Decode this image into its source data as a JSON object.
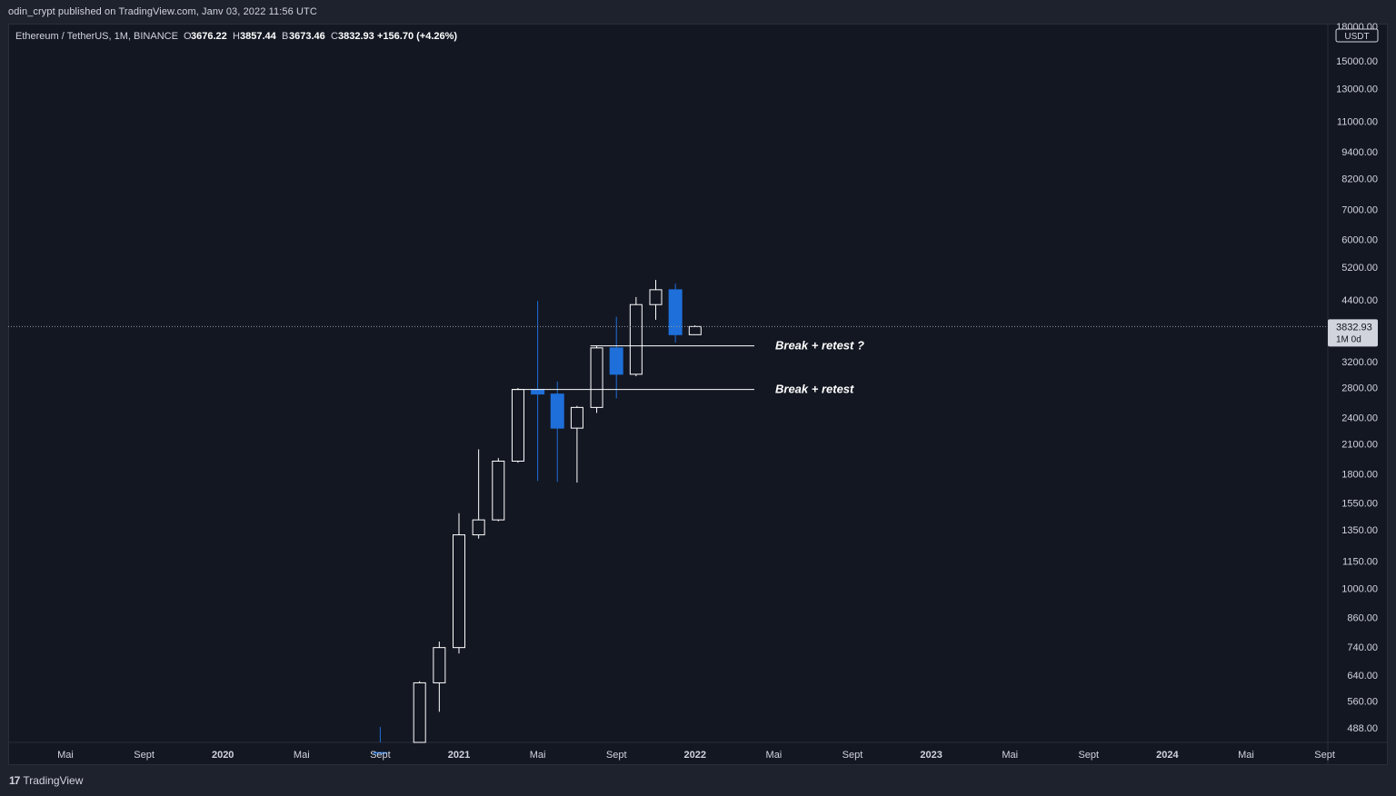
{
  "header": {
    "published_text": "odin_crypt published on TradingView.com, Janv 03, 2022 11:56 UTC"
  },
  "footer": {
    "logo_mark": "17",
    "logo_text": "TradingView"
  },
  "colors": {
    "background": "#131722",
    "frame": "#1e222d",
    "bull_candle": "#ffffff",
    "bear_candle": "#1e6fd9",
    "text": "#d1d4dc",
    "grid_axis": "#2a2e39"
  },
  "chart_data": {
    "type": "candlestick",
    "title_parts": {
      "symbol": "Ethereum / TetherUS, 1M, BINANCE",
      "o_label": "O",
      "o_value": "3676.22",
      "h_label": "H",
      "h_value": "3857.44",
      "b_label": "B",
      "b_value": "3673.46",
      "c_label": "C",
      "c_value": "3832.93",
      "change": "+156.70 (+4.26%)"
    },
    "y_scale": "log",
    "y_unit": "USDT",
    "y_ticks": [
      15000,
      13000,
      11000,
      9400,
      8200,
      7000,
      6000,
      5200,
      4400,
      3200,
      2800,
      2400,
      2100,
      1800,
      1550,
      1350,
      1150,
      1000,
      860,
      740,
      640,
      560,
      488
    ],
    "y_tick_labels": [
      "15000.00",
      "13000.00",
      "11000.00",
      "9400.00",
      "8200.00",
      "7000.00",
      "6000.00",
      "5200.00",
      "4400.00",
      "3200.00",
      "2800.00",
      "2400.00",
      "2100.00",
      "1800.00",
      "1550.00",
      "1350.00",
      "1150.00",
      "1000.00",
      "860.00",
      "740.00",
      "640.00",
      "560.00",
      "488.00"
    ],
    "y_top_partial_label": "18000.00",
    "x_ticks": [
      {
        "date": "2019-05",
        "label": "Mai"
      },
      {
        "date": "2019-09",
        "label": "Sept"
      },
      {
        "date": "2020-01",
        "label": "2020"
      },
      {
        "date": "2020-05",
        "label": "Mai"
      },
      {
        "date": "2020-09",
        "label": "Sept"
      },
      {
        "date": "2021-01",
        "label": "2021"
      },
      {
        "date": "2021-05",
        "label": "Mai"
      },
      {
        "date": "2021-09",
        "label": "Sept"
      },
      {
        "date": "2022-01",
        "label": "2022"
      },
      {
        "date": "2022-05",
        "label": "Mai"
      },
      {
        "date": "2022-09",
        "label": "Sept"
      },
      {
        "date": "2023-01",
        "label": "2023"
      },
      {
        "date": "2023-05",
        "label": "Mai"
      },
      {
        "date": "2023-09",
        "label": "Sept"
      },
      {
        "date": "2024-01",
        "label": "2024"
      },
      {
        "date": "2024-05",
        "label": "Mai"
      },
      {
        "date": "2024-09",
        "label": "Sept"
      }
    ],
    "candles": [
      {
        "date": "2020-09",
        "o": 430,
        "h": 490,
        "l": 310,
        "c": 390
      },
      {
        "date": "2020-11",
        "o": 390,
        "h": 620,
        "l": 380,
        "c": 615
      },
      {
        "date": "2020-12",
        "o": 615,
        "h": 760,
        "l": 530,
        "c": 737
      },
      {
        "date": "2021-01",
        "o": 737,
        "h": 1470,
        "l": 715,
        "c": 1315
      },
      {
        "date": "2021-02",
        "o": 1315,
        "h": 2040,
        "l": 1290,
        "c": 1420
      },
      {
        "date": "2021-03",
        "o": 1420,
        "h": 1950,
        "l": 1410,
        "c": 1920
      },
      {
        "date": "2021-04",
        "o": 1920,
        "h": 2795,
        "l": 1905,
        "c": 2775
      },
      {
        "date": "2021-05",
        "o": 2775,
        "h": 4372,
        "l": 1735,
        "c": 2710
      },
      {
        "date": "2021-06",
        "o": 2710,
        "h": 2890,
        "l": 1725,
        "c": 2275
      },
      {
        "date": "2021-07",
        "o": 2275,
        "h": 2550,
        "l": 1720,
        "c": 2530
      },
      {
        "date": "2021-08",
        "o": 2530,
        "h": 3470,
        "l": 2460,
        "c": 3435
      },
      {
        "date": "2021-09",
        "o": 3435,
        "h": 4030,
        "l": 2650,
        "c": 3000
      },
      {
        "date": "2021-10",
        "o": 3000,
        "h": 4460,
        "l": 2970,
        "c": 4290
      },
      {
        "date": "2021-11",
        "o": 4290,
        "h": 4870,
        "l": 3970,
        "c": 4630
      },
      {
        "date": "2021-12",
        "o": 4630,
        "h": 4780,
        "l": 3530,
        "c": 3676
      },
      {
        "date": "2022-01",
        "o": 3676,
        "h": 3857,
        "l": 3673,
        "c": 3833
      }
    ],
    "last_price": {
      "value": 3832.93,
      "label": "3832.93",
      "sublabel": "1M 0d"
    },
    "annotations": [
      {
        "price": 3470,
        "text": "Break + retest ?",
        "from": "2021-08",
        "to": "2022-03"
      },
      {
        "price": 2775,
        "text": "Break + retest",
        "from": "2021-04",
        "to": "2022-03"
      }
    ]
  }
}
